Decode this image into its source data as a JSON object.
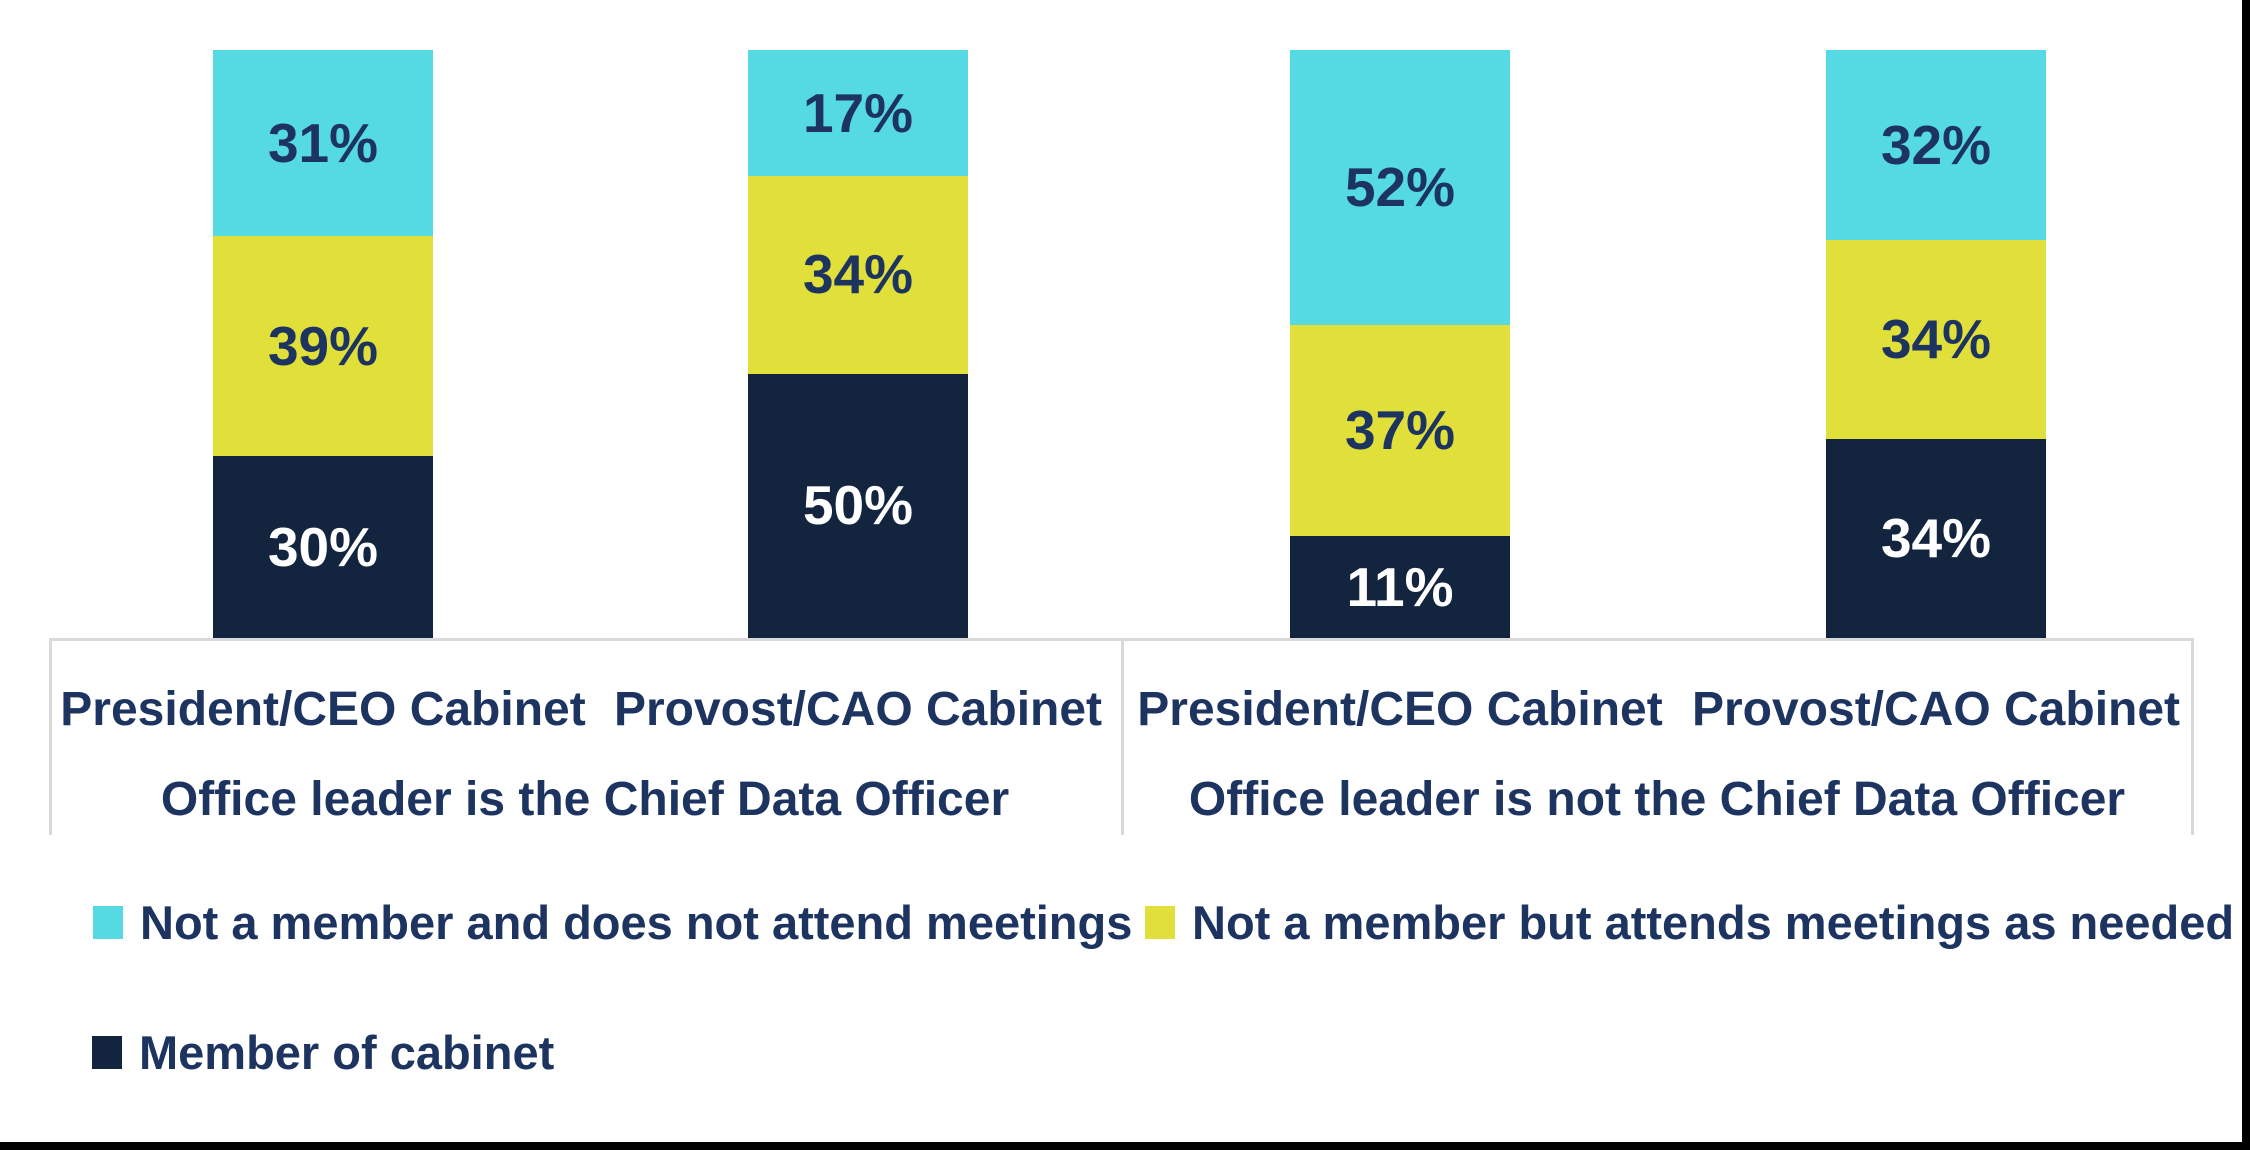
{
  "chart_data": {
    "type": "bar",
    "stacked": true,
    "orientation": "vertical",
    "value_suffix": "%",
    "axis_color": "#D9D9D9",
    "background": "#FFFFFF",
    "groups": [
      {
        "label": "Office leader is the Chief Data Officer",
        "categories": [
          "President/CEO Cabinet",
          "Provost/CAO Cabinet"
        ]
      },
      {
        "label": "Office leader is not the Chief Data Officer",
        "categories": [
          "President/CEO Cabinet",
          "Provost/CAO Cabinet"
        ]
      }
    ],
    "category_order": [
      "President/CEO Cabinet (CDO leads office)",
      "Provost/CAO Cabinet (CDO leads office)",
      "President/CEO Cabinet (CDO does not lead office)",
      "Provost/CAO Cabinet (CDO does not lead office)"
    ],
    "series": [
      {
        "name": "Member of cabinet",
        "color": "#13243F",
        "label_color": "#FFFFFF",
        "values": [
          30,
          50,
          11,
          34
        ]
      },
      {
        "name": "Not a member but attends meetings as needed",
        "color": "#E1E03A",
        "label_color": "#1D3461",
        "values": [
          39,
          34,
          37,
          34
        ]
      },
      {
        "name": "Not a member and does not attend meetings",
        "color": "#55D9E2",
        "label_color": "#1D3461",
        "values": [
          31,
          17,
          52,
          32
        ]
      }
    ],
    "stack_order_top_to_bottom": [
      "Not a member and does not attend meetings",
      "Not a member but attends meetings as needed",
      "Member of cabinet"
    ],
    "ylim": [
      0,
      100
    ],
    "grid": false,
    "legend_position": "bottom-left"
  },
  "legend": {
    "items": [
      {
        "label": "Not a member and does not attend meetings",
        "series": 2
      },
      {
        "label": "Not a member but attends meetings as needed",
        "series": 1
      },
      {
        "label": "Member of cabinet",
        "series": 0
      }
    ]
  },
  "text_color": "#1D3461"
}
